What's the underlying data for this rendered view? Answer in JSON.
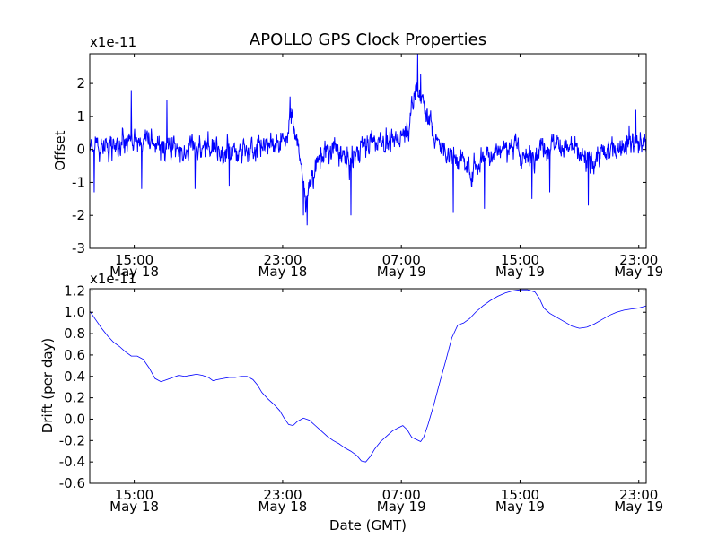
{
  "figure": {
    "title": "APOLLO GPS Clock Properties"
  },
  "chart_data": [
    {
      "type": "line",
      "panel": "top",
      "ylabel": "Offset",
      "xlabel": "",
      "multiplier": "x1e-11",
      "x_unit": "hours since May 18 10:00 GMT",
      "xlim": [
        0,
        37.5
      ],
      "ylim": [
        -3,
        2.9
      ],
      "yticks": [
        -3,
        -2,
        -1,
        0,
        1,
        2
      ],
      "ytick_labels": [
        "-3",
        "-2",
        "-1",
        "0",
        "1",
        "2"
      ],
      "xticks": [
        {
          "x": 3,
          "time": "15:00",
          "date": "May 18"
        },
        {
          "x": 13,
          "time": "23:00",
          "date": "May 18"
        },
        {
          "x": 21,
          "time": "07:00",
          "date": "May 19"
        },
        {
          "x": 29,
          "time": "15:00",
          "date": "May 19"
        },
        {
          "x": 37,
          "time": "23:00",
          "date": "May 19"
        }
      ],
      "series": [
        {
          "color": "#0000ff",
          "noise_amplitude": 0.45,
          "baseline": [
            [
              0,
              0.1
            ],
            [
              1.5,
              0.1
            ],
            [
              3,
              0.3
            ],
            [
              4,
              0.2
            ],
            [
              5,
              0.1
            ],
            [
              6.5,
              0
            ],
            [
              8,
              0.05
            ],
            [
              9.5,
              -0.1
            ],
            [
              11,
              0.1
            ],
            [
              12.5,
              0.2
            ],
            [
              13.2,
              0.4
            ],
            [
              13.6,
              1.0
            ],
            [
              14,
              0.3
            ],
            [
              14.5,
              -1.5
            ],
            [
              15,
              -0.8
            ],
            [
              15.5,
              -0.2
            ],
            [
              16.5,
              0
            ],
            [
              17.5,
              -0.4
            ],
            [
              18.3,
              0.1
            ],
            [
              19.5,
              0.3
            ],
            [
              20.3,
              0.2
            ],
            [
              21,
              0.4
            ],
            [
              21.5,
              0.8
            ],
            [
              22,
              1.9
            ],
            [
              22.6,
              1.3
            ],
            [
              23.2,
              0.4
            ],
            [
              24,
              -0.1
            ],
            [
              25,
              -0.3
            ],
            [
              25.8,
              -0.7
            ],
            [
              26.5,
              -0.2
            ],
            [
              27.5,
              0
            ],
            [
              28.5,
              0.1
            ],
            [
              29.5,
              -0.3
            ],
            [
              30.5,
              0.1
            ],
            [
              31.5,
              0.2
            ],
            [
              32.5,
              0
            ],
            [
              33.5,
              -0.4
            ],
            [
              34.5,
              -0.2
            ],
            [
              35.5,
              0.1
            ],
            [
              36.5,
              0.3
            ],
            [
              37.5,
              0.1
            ]
          ],
          "spikes": [
            [
              22.1,
              2.9
            ],
            [
              22.3,
              2.3
            ],
            [
              14.65,
              -2.3
            ],
            [
              14.4,
              -2.0
            ],
            [
              17.6,
              -2.0
            ],
            [
              24.5,
              -1.9
            ],
            [
              26.6,
              -1.8
            ],
            [
              29.8,
              -1.5
            ],
            [
              31,
              -1.3
            ],
            [
              33.6,
              -1.7
            ],
            [
              7.1,
              -1.2
            ],
            [
              9.4,
              -1.1
            ],
            [
              2.8,
              1.8
            ],
            [
              5.2,
              1.5
            ],
            [
              13.5,
              1.6
            ],
            [
              36.8,
              1.2
            ],
            [
              0.3,
              -1.3
            ],
            [
              3.5,
              -1.2
            ]
          ]
        }
      ]
    },
    {
      "type": "line",
      "panel": "bottom",
      "ylabel": "Drift (per day)",
      "xlabel": "Date (GMT)",
      "multiplier": "x1e-11",
      "x_unit": "hours since May 18 10:00 GMT",
      "xlim": [
        0,
        37.5
      ],
      "ylim": [
        -0.6,
        1.22
      ],
      "yticks": [
        -0.6,
        -0.4,
        -0.2,
        0.0,
        0.2,
        0.4,
        0.6,
        0.8,
        1.0,
        1.2
      ],
      "ytick_labels": [
        "-0.6",
        "-0.4",
        "-0.2",
        "0.0",
        "0.2",
        "0.4",
        "0.6",
        "0.8",
        "1.0",
        "1.2"
      ],
      "xticks": [
        {
          "x": 3,
          "time": "15:00",
          "date": "May 18"
        },
        {
          "x": 13,
          "time": "23:00",
          "date": "May 18"
        },
        {
          "x": 21,
          "time": "07:00",
          "date": "May 19"
        },
        {
          "x": 29,
          "time": "15:00",
          "date": "May 19"
        },
        {
          "x": 37,
          "time": "23:00",
          "date": "May 19"
        }
      ],
      "series": [
        {
          "color": "#0000ff",
          "points": [
            [
              0,
              1.01
            ],
            [
              0.4,
              0.93
            ],
            [
              0.8,
              0.85
            ],
            [
              1.2,
              0.78
            ],
            [
              1.6,
              0.72
            ],
            [
              2,
              0.68
            ],
            [
              2.4,
              0.63
            ],
            [
              2.8,
              0.59
            ],
            [
              3.2,
              0.59
            ],
            [
              3.6,
              0.56
            ],
            [
              4,
              0.48
            ],
            [
              4.4,
              0.38
            ],
            [
              4.8,
              0.35
            ],
            [
              5.2,
              0.37
            ],
            [
              5.6,
              0.39
            ],
            [
              6,
              0.41
            ],
            [
              6.4,
              0.4
            ],
            [
              6.8,
              0.41
            ],
            [
              7.2,
              0.42
            ],
            [
              7.6,
              0.41
            ],
            [
              8,
              0.39
            ],
            [
              8.3,
              0.36
            ],
            [
              8.6,
              0.37
            ],
            [
              9,
              0.38
            ],
            [
              9.4,
              0.39
            ],
            [
              9.8,
              0.39
            ],
            [
              10.2,
              0.4
            ],
            [
              10.6,
              0.4
            ],
            [
              11,
              0.37
            ],
            [
              11.3,
              0.32
            ],
            [
              11.6,
              0.25
            ],
            [
              12,
              0.19
            ],
            [
              12.4,
              0.14
            ],
            [
              12.8,
              0.08
            ],
            [
              13.1,
              0.01
            ],
            [
              13.4,
              -0.05
            ],
            [
              13.7,
              -0.06
            ],
            [
              14,
              -0.02
            ],
            [
              14.4,
              0.01
            ],
            [
              14.8,
              -0.01
            ],
            [
              15.2,
              -0.06
            ],
            [
              15.6,
              -0.11
            ],
            [
              16,
              -0.16
            ],
            [
              16.4,
              -0.2
            ],
            [
              16.8,
              -0.23
            ],
            [
              17.2,
              -0.27
            ],
            [
              17.6,
              -0.3
            ],
            [
              18,
              -0.34
            ],
            [
              18.3,
              -0.39
            ],
            [
              18.6,
              -0.4
            ],
            [
              18.9,
              -0.35
            ],
            [
              19.2,
              -0.28
            ],
            [
              19.6,
              -0.21
            ],
            [
              20,
              -0.16
            ],
            [
              20.4,
              -0.11
            ],
            [
              20.8,
              -0.08
            ],
            [
              21.1,
              -0.06
            ],
            [
              21.4,
              -0.1
            ],
            [
              21.7,
              -0.17
            ],
            [
              22,
              -0.19
            ],
            [
              22.3,
              -0.21
            ],
            [
              22.5,
              -0.17
            ],
            [
              22.8,
              -0.05
            ],
            [
              23.2,
              0.14
            ],
            [
              23.6,
              0.35
            ],
            [
              24,
              0.55
            ],
            [
              24.4,
              0.76
            ],
            [
              24.8,
              0.88
            ],
            [
              25.2,
              0.9
            ],
            [
              25.6,
              0.94
            ],
            [
              26,
              1.0
            ],
            [
              26.5,
              1.06
            ],
            [
              27,
              1.11
            ],
            [
              27.5,
              1.15
            ],
            [
              28,
              1.18
            ],
            [
              28.5,
              1.2
            ],
            [
              29,
              1.21
            ],
            [
              29.5,
              1.21
            ],
            [
              30,
              1.19
            ],
            [
              30.3,
              1.13
            ],
            [
              30.6,
              1.04
            ],
            [
              31,
              0.99
            ],
            [
              31.5,
              0.95
            ],
            [
              32,
              0.91
            ],
            [
              32.5,
              0.87
            ],
            [
              33,
              0.85
            ],
            [
              33.5,
              0.86
            ],
            [
              34,
              0.89
            ],
            [
              34.5,
              0.93
            ],
            [
              35,
              0.97
            ],
            [
              35.5,
              1.0
            ],
            [
              36,
              1.02
            ],
            [
              36.5,
              1.03
            ],
            [
              37,
              1.04
            ],
            [
              37.5,
              1.06
            ]
          ]
        }
      ]
    }
  ]
}
